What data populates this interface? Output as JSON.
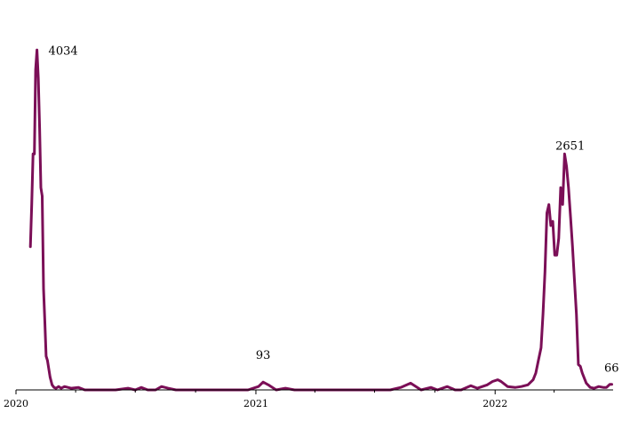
{
  "chart_data": {
    "type": "line",
    "title": "",
    "xlabel": "",
    "ylabel": "",
    "line_color": "#7b0f57",
    "xlim": [
      "2020-01-01",
      "2022-06-30"
    ],
    "ylim": [
      0,
      4100
    ],
    "x_ticks": [
      "2020",
      "2021",
      "2022"
    ],
    "annotations": [
      {
        "x": "2020-02-06",
        "y": 4034,
        "label": "4034"
      },
      {
        "x": "2021-01-12",
        "y": 93,
        "label": "93"
      },
      {
        "x": "2022-05-05",
        "y": 2651,
        "label": "2651"
      },
      {
        "x": "2022-06-25",
        "y": 66,
        "label": "66"
      }
    ],
    "series": [
      {
        "x": [
          "2020-01-23",
          "2020-01-25",
          "2020-01-27",
          "2020-01-29",
          "2020-01-31",
          "2020-02-02",
          "2020-02-04",
          "2020-02-06",
          "2020-02-08",
          "2020-02-10",
          "2020-02-12",
          "2020-02-14",
          "2020-02-16",
          "2020-02-18",
          "2020-02-20",
          "2020-02-22",
          "2020-02-25",
          "2020-02-28",
          "2020-03-02",
          "2020-03-06",
          "2020-03-10",
          "2020-03-15",
          "2020-03-25",
          "2020-04-05",
          "2020-04-15",
          "2020-04-22",
          "2020-05-01",
          "2020-05-15",
          "2020-06-01",
          "2020-06-20",
          "2020-07-01",
          "2020-07-10",
          "2020-07-20",
          "2020-08-01",
          "2020-08-10",
          "2020-08-20",
          "2020-09-01",
          "2020-10-01",
          "2020-10-20",
          "2020-11-01",
          "2020-12-01",
          "2020-12-20",
          "2021-01-05",
          "2021-01-12",
          "2021-01-20",
          "2021-02-01",
          "2021-02-15",
          "2021-03-01",
          "2021-04-01",
          "2021-05-01",
          "2021-06-01",
          "2021-06-20",
          "2021-07-10",
          "2021-07-25",
          "2021-08-10",
          "2021-08-25",
          "2021-09-10",
          "2021-09-25",
          "2021-10-05",
          "2021-10-20",
          "2021-11-01",
          "2021-11-10",
          "2021-11-25",
          "2021-12-05",
          "2021-12-20",
          "2021-12-28",
          "2022-01-05",
          "2022-01-10",
          "2022-01-20",
          "2022-02-01",
          "2022-02-10",
          "2022-02-20",
          "2022-02-28",
          "2022-03-04",
          "2022-03-08",
          "2022-03-12",
          "2022-03-15",
          "2022-03-18",
          "2022-03-21",
          "2022-03-24",
          "2022-03-27",
          "2022-03-30",
          "2022-04-02",
          "2022-04-05",
          "2022-04-08",
          "2022-04-11",
          "2022-04-14",
          "2022-04-17",
          "2022-04-20",
          "2022-04-23",
          "2022-04-26",
          "2022-04-29",
          "2022-05-02",
          "2022-05-05",
          "2022-05-08",
          "2022-05-11",
          "2022-05-14",
          "2022-05-20",
          "2022-05-26",
          "2022-06-01",
          "2022-06-08",
          "2022-06-15",
          "2022-06-20",
          "2022-06-25",
          "2022-06-28"
        ],
        "y": [
          1700,
          2200,
          2800,
          2800,
          3800,
          4034,
          3700,
          3100,
          2400,
          2300,
          1200,
          800,
          400,
          350,
          250,
          150,
          60,
          30,
          20,
          40,
          20,
          40,
          20,
          30,
          0,
          0,
          0,
          0,
          0,
          20,
          0,
          30,
          0,
          0,
          40,
          20,
          0,
          0,
          0,
          0,
          0,
          0,
          40,
          93,
          60,
          0,
          20,
          0,
          0,
          0,
          0,
          0,
          0,
          0,
          30,
          80,
          0,
          30,
          0,
          40,
          0,
          0,
          50,
          20,
          60,
          100,
          120,
          100,
          40,
          30,
          40,
          60,
          120,
          200,
          350,
          500,
          900,
          1400,
          2100,
          2200,
          1950,
          2000,
          1600,
          1600,
          1800,
          2400,
          2200,
          2800,
          2651,
          2400,
          2050,
          1700,
          1300,
          900,
          300,
          280,
          200,
          80,
          30,
          20,
          40,
          30,
          30,
          66,
          66
        ]
      }
    ]
  }
}
